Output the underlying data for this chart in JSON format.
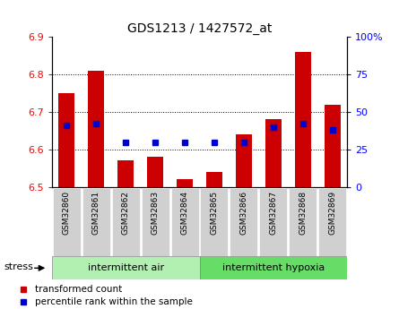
{
  "title": "GDS1213 / 1427572_at",
  "samples": [
    "GSM32860",
    "GSM32861",
    "GSM32862",
    "GSM32863",
    "GSM32864",
    "GSM32865",
    "GSM32866",
    "GSM32867",
    "GSM32868",
    "GSM32869"
  ],
  "bar_values": [
    6.75,
    6.81,
    6.57,
    6.58,
    6.52,
    6.54,
    6.64,
    6.68,
    6.86,
    6.72
  ],
  "blue_dot_values": [
    41,
    42,
    30,
    30,
    30,
    30,
    30,
    40,
    42,
    38
  ],
  "ylim_left": [
    6.5,
    6.9
  ],
  "ylim_right": [
    0,
    100
  ],
  "yticks_left": [
    6.5,
    6.6,
    6.7,
    6.8,
    6.9
  ],
  "yticks_right": [
    0,
    25,
    50,
    75,
    100
  ],
  "bar_color": "#cc0000",
  "dot_color": "#0000cc",
  "group1_label": "intermittent air",
  "group2_label": "intermittent hypoxia",
  "group1_indices": [
    0,
    1,
    2,
    3,
    4
  ],
  "group2_indices": [
    5,
    6,
    7,
    8,
    9
  ],
  "group_color1": "#b2f0b2",
  "group_color2": "#66dd66",
  "stress_label": "stress",
  "legend1": "transformed count",
  "legend2": "percentile rank within the sample",
  "bar_width": 0.55,
  "base_value": 6.5,
  "tick_label_bg": "#d0d0d0",
  "grid_yticks": [
    6.6,
    6.7,
    6.8
  ],
  "right_tick_labels": [
    "0",
    "25",
    "50",
    "75",
    "100%"
  ],
  "right_tick_values": [
    0,
    25,
    50,
    75,
    100
  ]
}
